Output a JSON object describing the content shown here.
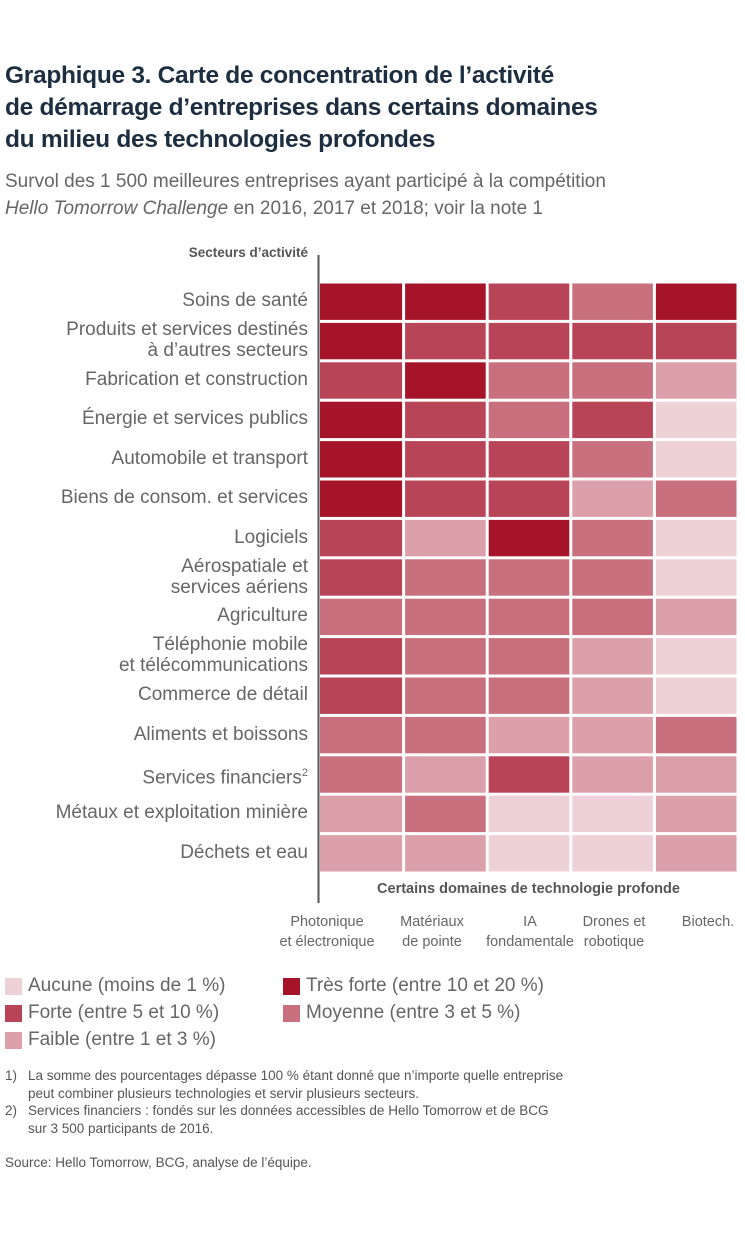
{
  "header": {
    "title_lines": [
      "Graphique 3. Carte de concentration de l’activité",
      "de démarrage d’entreprises dans certains domaines",
      "du milieu des technologies profondes"
    ],
    "subtitle_line1": "Survol des 1 500 meilleures entreprises ayant participé à la compétition",
    "subtitle_line2_italic": "Hello Tomorrow Challenge",
    "subtitle_line2_rest": " en 2016, 2017 et 2018; voir la note 1"
  },
  "chart_data": {
    "type": "heatmap",
    "title": "Graphique 3. Carte de concentration de l’activité de démarrage d’entreprises dans certains domaines du milieu des technologies profondes",
    "ylabel": "Secteurs d’activité",
    "xlabel": "Certains domaines de technologie profonde",
    "rows": [
      {
        "label": [
          "Soins de santé"
        ],
        "superscript": ""
      },
      {
        "label": [
          "Produits et services destinés",
          "à d’autres secteurs"
        ],
        "superscript": ""
      },
      {
        "label": [
          "Fabrication et construction"
        ],
        "superscript": ""
      },
      {
        "label": [
          "Énergie et services publics"
        ],
        "superscript": ""
      },
      {
        "label": [
          "Automobile et transport"
        ],
        "superscript": ""
      },
      {
        "label": [
          "Biens de consom. et services"
        ],
        "superscript": ""
      },
      {
        "label": [
          "Logiciels"
        ],
        "superscript": ""
      },
      {
        "label": [
          "Aérospatiale et",
          "services aériens"
        ],
        "superscript": ""
      },
      {
        "label": [
          "Agriculture"
        ],
        "superscript": ""
      },
      {
        "label": [
          "Téléphonie mobile",
          "et télécommunications"
        ],
        "superscript": ""
      },
      {
        "label": [
          "Commerce de détail"
        ],
        "superscript": ""
      },
      {
        "label": [
          "Aliments et boissons"
        ],
        "superscript": ""
      },
      {
        "label": [
          "Services financiers"
        ],
        "superscript": "2"
      },
      {
        "label": [
          "Métaux et exploitation minière"
        ],
        "superscript": ""
      },
      {
        "label": [
          "Déchets et eau"
        ],
        "superscript": ""
      }
    ],
    "columns": [
      [
        "Photonique",
        "et électronique"
      ],
      [
        "Matériaux",
        "de pointe"
      ],
      [
        "IA",
        "fondamentale"
      ],
      [
        "Drones et",
        "robotique"
      ],
      [
        "Biotech.",
        ""
      ]
    ],
    "levels": [
      {
        "name": "Aucune",
        "label": "Aucune (moins de 1 %)",
        "color": "#eed1d7"
      },
      {
        "name": "Faible",
        "label": "Faible (entre 1 et 3 %)",
        "color": "#dba0a9"
      },
      {
        "name": "Moyenne",
        "label": "Moyenne (entre 3 et 5 %)",
        "color": "#c8707e"
      },
      {
        "name": "Forte",
        "label": "Forte (entre 5 et 10 %)",
        "color": "#b84458"
      },
      {
        "name": "Très forte",
        "label": "Très forte (entre 10 et 20 %)",
        "color": "#a51428"
      }
    ],
    "values": [
      [
        4,
        4,
        3,
        2,
        4
      ],
      [
        4,
        3,
        3,
        3,
        3
      ],
      [
        3,
        4,
        2,
        2,
        1
      ],
      [
        4,
        3,
        2,
        3,
        0
      ],
      [
        4,
        3,
        3,
        2,
        0
      ],
      [
        4,
        3,
        3,
        1,
        2
      ],
      [
        3,
        1,
        4,
        2,
        0
      ],
      [
        3,
        2,
        2,
        2,
        0
      ],
      [
        2,
        2,
        2,
        2,
        1
      ],
      [
        3,
        2,
        2,
        1,
        0
      ],
      [
        3,
        2,
        2,
        1,
        0
      ],
      [
        2,
        2,
        1,
        1,
        2
      ],
      [
        2,
        1,
        3,
        1,
        1
      ],
      [
        1,
        2,
        0,
        0,
        1
      ],
      [
        1,
        1,
        0,
        0,
        1
      ]
    ],
    "value_encoding": "level index: 0=Aucune (<1%), 1=Faible (1-3%), 2=Moyenne (3-5%), 3=Forte (5-10%), 4=Très forte (10-20%)"
  },
  "legend_order": [
    0,
    3,
    1,
    4,
    2
  ],
  "notes": [
    {
      "num": "1)",
      "lines": [
        "La somme des pourcentages dépasse 100 % étant donné que n’importe quelle entreprise",
        "peut combiner plusieurs technologies et servir plusieurs secteurs."
      ]
    },
    {
      "num": "2)",
      "lines": [
        "Services financiers : fondés sur les données accessibles de Hello Tomorrow et de BCG",
        "sur 3 500 participants de 2016."
      ]
    }
  ],
  "source": "Source: Hello Tomorrow, BCG, analyse de l’équipe.",
  "colors": {
    "title": "#1c2e3f",
    "axis": "#555555"
  }
}
